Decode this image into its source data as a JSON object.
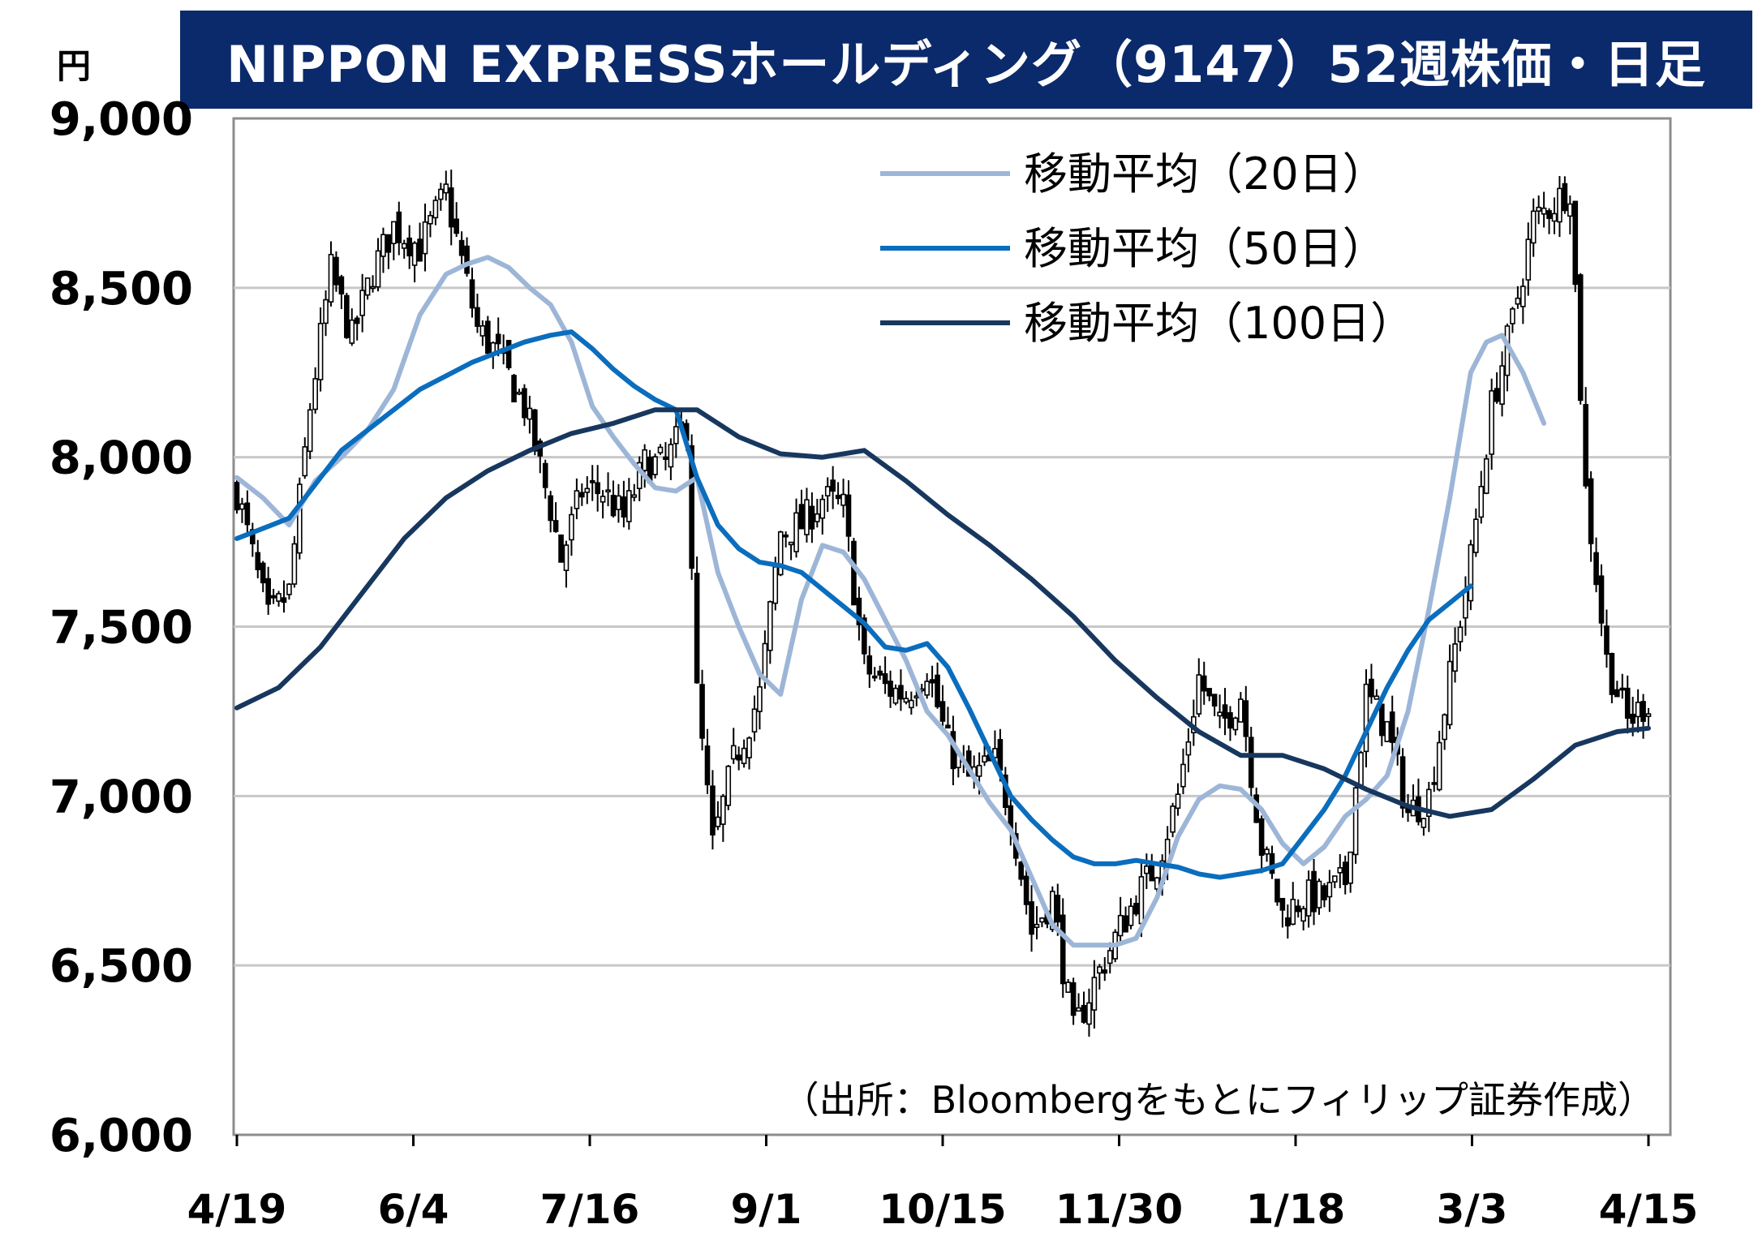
{
  "title": "NIPPON EXPRESSホールディング（9147）52週株価・日足",
  "unit_label": "円",
  "source_note": "（出所：Bloombergをもとにフィリップ証券作成）",
  "chart_data": {
    "type": "candlestick",
    "title": "NIPPON EXPRESSホールディング（9147）52週株価・日足",
    "ylabel": "円",
    "ylim": [
      6000,
      9000
    ],
    "yticks": [
      6000,
      6500,
      7000,
      7500,
      8000,
      8500,
      9000
    ],
    "ytick_labels": [
      "6,000",
      "6,500",
      "7,000",
      "7,500",
      "8,000",
      "8,500",
      "9,000"
    ],
    "xtick_labels": [
      "4/19",
      "6/4",
      "7/16",
      "9/1",
      "10/15",
      "11/30",
      "1/18",
      "3/3",
      "4/15"
    ],
    "grid": true,
    "legend_position": "top-right",
    "price_path": [
      [
        0,
        7900
      ],
      [
        6,
        7520
      ],
      [
        10,
        7600
      ],
      [
        14,
        8150
      ],
      [
        18,
        8550
      ],
      [
        22,
        8350
      ],
      [
        26,
        8550
      ],
      [
        30,
        8680
      ],
      [
        35,
        8620
      ],
      [
        40,
        8780
      ],
      [
        46,
        8380
      ],
      [
        50,
        8300
      ],
      [
        55,
        8150
      ],
      [
        60,
        7850
      ],
      [
        62,
        7700
      ],
      [
        66,
        7900
      ],
      [
        70,
        7900
      ],
      [
        74,
        7820
      ],
      [
        78,
        7980
      ],
      [
        82,
        7980
      ],
      [
        86,
        8100
      ],
      [
        88,
        7300
      ],
      [
        91,
        6850
      ],
      [
        95,
        7100
      ],
      [
        100,
        7300
      ],
      [
        104,
        7780
      ],
      [
        108,
        7800
      ],
      [
        112,
        7880
      ],
      [
        116,
        7850
      ],
      [
        120,
        7380
      ],
      [
        124,
        7320
      ],
      [
        128,
        7300
      ],
      [
        132,
        7380
      ],
      [
        136,
        7150
      ],
      [
        140,
        7050
      ],
      [
        145,
        7100
      ],
      [
        148,
        6950
      ],
      [
        152,
        6600
      ],
      [
        156,
        6700
      ],
      [
        160,
        6300
      ],
      [
        164,
        6450
      ],
      [
        168,
        6580
      ],
      [
        172,
        6700
      ],
      [
        176,
        6800
      ],
      [
        180,
        7000
      ],
      [
        184,
        7350
      ],
      [
        188,
        7200
      ],
      [
        192,
        7300
      ],
      [
        196,
        6850
      ],
      [
        200,
        6650
      ],
      [
        204,
        6700
      ],
      [
        208,
        6700
      ],
      [
        212,
        6750
      ],
      [
        216,
        7300
      ],
      [
        220,
        7200
      ],
      [
        224,
        6950
      ],
      [
        228,
        7000
      ],
      [
        232,
        7350
      ],
      [
        236,
        7700
      ],
      [
        240,
        8150
      ],
      [
        244,
        8400
      ],
      [
        248,
        8700
      ],
      [
        252,
        8750
      ],
      [
        255,
        8800
      ],
      [
        258,
        7900
      ],
      [
        262,
        7400
      ],
      [
        266,
        7220
      ],
      [
        270,
        7280
      ]
    ],
    "series": [
      {
        "name": "移動平均（20日）",
        "color": "#9db6d7",
        "points": [
          [
            0,
            7940
          ],
          [
            5,
            7880
          ],
          [
            10,
            7800
          ],
          [
            15,
            7930
          ],
          [
            20,
            8000
          ],
          [
            25,
            8080
          ],
          [
            30,
            8200
          ],
          [
            35,
            8420
          ],
          [
            40,
            8540
          ],
          [
            44,
            8570
          ],
          [
            48,
            8590
          ],
          [
            52,
            8560
          ],
          [
            56,
            8500
          ],
          [
            60,
            8450
          ],
          [
            64,
            8340
          ],
          [
            68,
            8150
          ],
          [
            72,
            8060
          ],
          [
            76,
            7980
          ],
          [
            80,
            7910
          ],
          [
            84,
            7900
          ],
          [
            88,
            7940
          ],
          [
            92,
            7660
          ],
          [
            96,
            7500
          ],
          [
            100,
            7360
          ],
          [
            104,
            7300
          ],
          [
            108,
            7580
          ],
          [
            112,
            7740
          ],
          [
            116,
            7720
          ],
          [
            120,
            7640
          ],
          [
            124,
            7520
          ],
          [
            128,
            7400
          ],
          [
            132,
            7250
          ],
          [
            136,
            7180
          ],
          [
            140,
            7080
          ],
          [
            144,
            6980
          ],
          [
            148,
            6900
          ],
          [
            152,
            6760
          ],
          [
            156,
            6620
          ],
          [
            160,
            6560
          ],
          [
            164,
            6560
          ],
          [
            168,
            6560
          ],
          [
            172,
            6580
          ],
          [
            176,
            6700
          ],
          [
            180,
            6880
          ],
          [
            184,
            6990
          ],
          [
            188,
            7030
          ],
          [
            192,
            7020
          ],
          [
            196,
            6960
          ],
          [
            200,
            6860
          ],
          [
            204,
            6800
          ],
          [
            208,
            6850
          ],
          [
            212,
            6940
          ],
          [
            216,
            6990
          ],
          [
            220,
            7060
          ],
          [
            224,
            7250
          ],
          [
            228,
            7550
          ],
          [
            232,
            7880
          ],
          [
            236,
            8250
          ],
          [
            239,
            8340
          ],
          [
            242,
            8360
          ],
          [
            246,
            8250
          ],
          [
            250,
            8100
          ]
        ]
      },
      {
        "name": "移動平均（50日）",
        "color": "#0a6dbd",
        "points": [
          [
            0,
            7760
          ],
          [
            5,
            7790
          ],
          [
            10,
            7820
          ],
          [
            15,
            7920
          ],
          [
            20,
            8020
          ],
          [
            25,
            8080
          ],
          [
            30,
            8140
          ],
          [
            35,
            8200
          ],
          [
            40,
            8240
          ],
          [
            45,
            8280
          ],
          [
            50,
            8310
          ],
          [
            55,
            8340
          ],
          [
            60,
            8360
          ],
          [
            64,
            8370
          ],
          [
            68,
            8320
          ],
          [
            72,
            8260
          ],
          [
            76,
            8210
          ],
          [
            80,
            8170
          ],
          [
            84,
            8140
          ],
          [
            88,
            7940
          ],
          [
            92,
            7800
          ],
          [
            96,
            7730
          ],
          [
            100,
            7690
          ],
          [
            104,
            7680
          ],
          [
            108,
            7660
          ],
          [
            112,
            7610
          ],
          [
            116,
            7560
          ],
          [
            120,
            7510
          ],
          [
            124,
            7440
          ],
          [
            128,
            7430
          ],
          [
            132,
            7450
          ],
          [
            136,
            7380
          ],
          [
            140,
            7260
          ],
          [
            144,
            7130
          ],
          [
            148,
            7000
          ],
          [
            152,
            6930
          ],
          [
            156,
            6870
          ],
          [
            160,
            6820
          ],
          [
            164,
            6800
          ],
          [
            168,
            6800
          ],
          [
            172,
            6810
          ],
          [
            176,
            6800
          ],
          [
            180,
            6790
          ],
          [
            184,
            6770
          ],
          [
            188,
            6760
          ],
          [
            192,
            6770
          ],
          [
            196,
            6780
          ],
          [
            200,
            6800
          ],
          [
            204,
            6880
          ],
          [
            208,
            6960
          ],
          [
            212,
            7060
          ],
          [
            216,
            7190
          ],
          [
            220,
            7320
          ],
          [
            224,
            7430
          ],
          [
            228,
            7520
          ],
          [
            232,
            7570
          ],
          [
            236,
            7620
          ]
        ]
      },
      {
        "name": "移動平均（100日）",
        "color": "#17375e",
        "points": [
          [
            0,
            7260
          ],
          [
            8,
            7320
          ],
          [
            16,
            7440
          ],
          [
            24,
            7600
          ],
          [
            32,
            7760
          ],
          [
            40,
            7880
          ],
          [
            48,
            7960
          ],
          [
            56,
            8020
          ],
          [
            64,
            8070
          ],
          [
            72,
            8100
          ],
          [
            80,
            8140
          ],
          [
            88,
            8140
          ],
          [
            96,
            8060
          ],
          [
            104,
            8010
          ],
          [
            112,
            8000
          ],
          [
            120,
            8020
          ],
          [
            128,
            7930
          ],
          [
            136,
            7830
          ],
          [
            144,
            7740
          ],
          [
            152,
            7640
          ],
          [
            160,
            7530
          ],
          [
            168,
            7400
          ],
          [
            176,
            7290
          ],
          [
            184,
            7190
          ],
          [
            192,
            7120
          ],
          [
            200,
            7120
          ],
          [
            208,
            7080
          ],
          [
            216,
            7020
          ],
          [
            224,
            6970
          ],
          [
            232,
            6940
          ],
          [
            240,
            6960
          ],
          [
            248,
            7050
          ],
          [
            256,
            7150
          ],
          [
            264,
            7190
          ],
          [
            270,
            7200
          ]
        ]
      }
    ]
  }
}
